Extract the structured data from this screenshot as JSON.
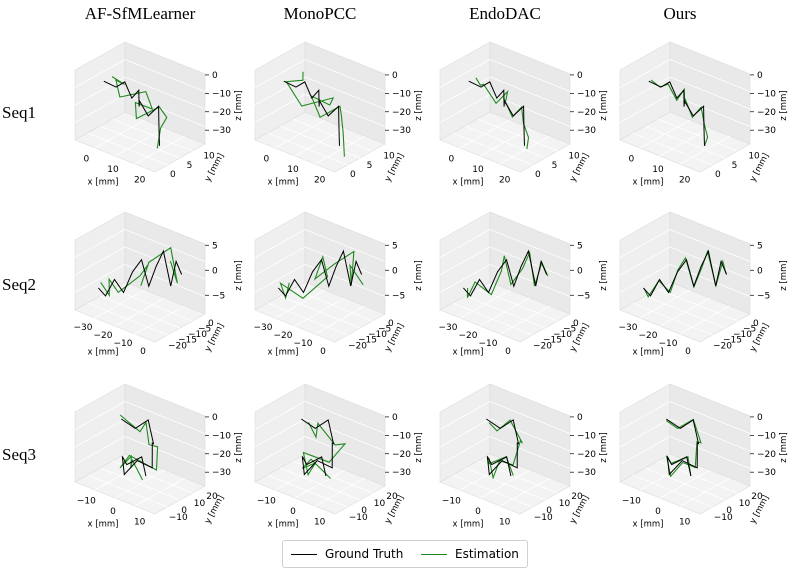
{
  "columns": [
    "AF-SfMLearner",
    "MonoPCC",
    "EndoDAC",
    "Ours"
  ],
  "rows": [
    "Seq1",
    "Seq2",
    "Seq3"
  ],
  "legend": [
    {
      "label": "Ground Truth",
      "color": "#000000"
    },
    {
      "label": "Estimation",
      "color": "#1f8a1f"
    }
  ],
  "chart_data": [
    {
      "type": "line3d",
      "sequence": "Seq1",
      "x_label": "x [mm]",
      "y_label": "y [mm]",
      "z_label": "z [mm]",
      "x_ticks": [
        "0",
        "10",
        "20"
      ],
      "y_ticks": [
        "0",
        "5",
        "10"
      ],
      "z_ticks": [
        "0",
        "−10",
        "−20",
        "−30"
      ],
      "xlim": [
        -5,
        30
      ],
      "ylim": [
        0,
        12
      ],
      "zlim": [
        -32,
        2
      ],
      "ground_truth": [
        [
          0,
          2,
          -2
        ],
        [
          3,
          4,
          -6
        ],
        [
          6,
          5,
          -3
        ],
        [
          8,
          6,
          -12
        ],
        [
          10,
          7,
          -8
        ],
        [
          12,
          6,
          -15
        ],
        [
          14,
          5,
          -10
        ],
        [
          17,
          6,
          -18
        ],
        [
          19,
          8,
          -14
        ],
        [
          21,
          7,
          -22
        ],
        [
          23,
          6,
          -27
        ],
        [
          25,
          5,
          -30
        ]
      ]
    },
    {
      "type": "line3d",
      "sequence": "Seq2",
      "x_label": "x [mm]",
      "y_label": "y [mm]",
      "z_label": "z [mm]",
      "x_ticks": [
        "−30",
        "−20",
        "−10",
        "0"
      ],
      "y_ticks": [
        "−20",
        "−15",
        "−10",
        "−5",
        "0"
      ],
      "z_ticks": [
        "5",
        "0",
        "−5"
      ],
      "xlim": [
        -32,
        2
      ],
      "ylim": [
        -22,
        2
      ],
      "zlim": [
        -8,
        7
      ],
      "ground_truth": [
        [
          -30,
          -18,
          -4
        ],
        [
          -28,
          -16,
          -6
        ],
        [
          -25,
          -14,
          -2
        ],
        [
          -22,
          -12,
          -5
        ],
        [
          -19,
          -10,
          0
        ],
        [
          -16,
          -8,
          3
        ],
        [
          -13,
          -7,
          -3
        ],
        [
          -10,
          -6,
          2
        ],
        [
          -7,
          -5,
          6
        ],
        [
          -4,
          -4,
          -2
        ],
        [
          -2,
          -3,
          4
        ],
        [
          0,
          -2,
          1
        ]
      ]
    },
    {
      "type": "line3d",
      "sequence": "Seq3",
      "x_label": "x [mm]",
      "y_label": "y [mm]",
      "z_label": "z [mm]",
      "x_ticks": [
        "−10",
        "0",
        "10"
      ],
      "y_ticks": [
        "−10",
        "0",
        "10",
        "20"
      ],
      "z_ticks": [
        "0",
        "−10",
        "−20",
        "−30"
      ],
      "xlim": [
        -15,
        15
      ],
      "ylim": [
        -12,
        25
      ],
      "zlim": [
        -32,
        2
      ],
      "ground_truth": [
        [
          -8,
          5,
          -2
        ],
        [
          -5,
          12,
          -8
        ],
        [
          -2,
          18,
          -4
        ],
        [
          2,
          15,
          -14
        ],
        [
          5,
          8,
          -10
        ],
        [
          8,
          2,
          -20
        ],
        [
          4,
          -4,
          -16
        ],
        [
          0,
          -8,
          -24
        ],
        [
          -4,
          -2,
          -18
        ],
        [
          -6,
          6,
          -26
        ],
        [
          -2,
          12,
          -22
        ],
        [
          3,
          6,
          -28
        ]
      ]
    }
  ]
}
